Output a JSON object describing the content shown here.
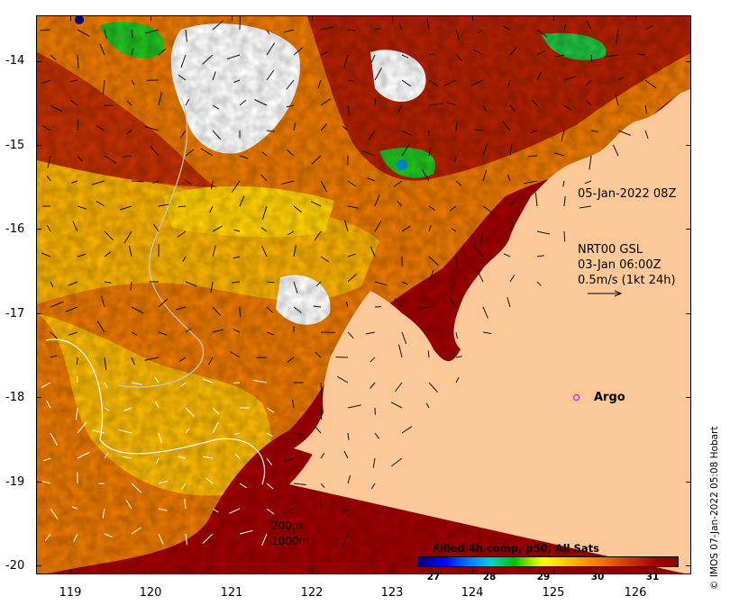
{
  "axes": {
    "x_ticks": [
      "119",
      "120",
      "121",
      "122",
      "123",
      "124",
      "125",
      "126"
    ],
    "y_ticks": [
      "-14",
      "-15",
      "-16",
      "-17",
      "-18",
      "-19",
      "-20"
    ]
  },
  "map": {
    "region": "SST map, NW Australia coast",
    "land_color": "#fcc898",
    "no_data_color": "#ffffff",
    "sst_colors": [
      "#8b0000",
      "#b81c00",
      "#d04000",
      "#e06000",
      "#f08c00",
      "#f8b400",
      "#ffd400",
      "#80e000",
      "#00c000",
      "#00a0d0"
    ]
  },
  "annotations": {
    "datetime": "05-Jan-2022 08Z",
    "current_source": "NRT00 GSL",
    "current_time": "03-Jan 06:00Z",
    "current_scale": "0.5m/s (1kt 24h)",
    "argo": "Argo"
  },
  "colorbar": {
    "title": "Filled 4h comp, p50, All Sats",
    "ticks": [
      "27",
      "28",
      "29",
      "30",
      "31"
    ],
    "range": [
      26.5,
      31.5
    ]
  },
  "contours": {
    "label_200": "200m",
    "label_1000": "1000m"
  },
  "credit": "© IMOS 07-Jan-2022 05:08 Hobart"
}
